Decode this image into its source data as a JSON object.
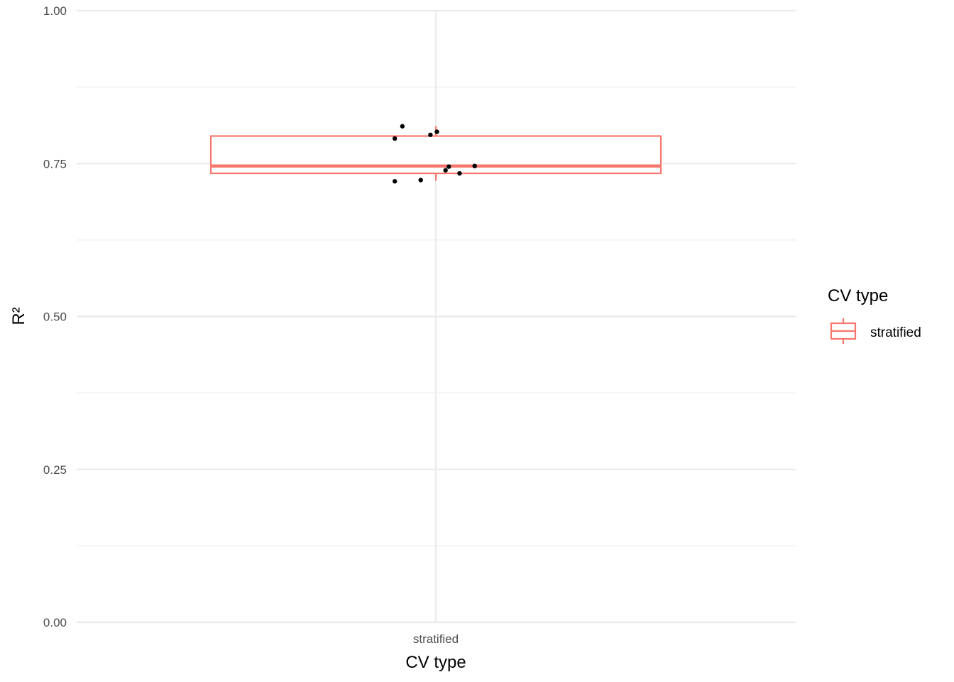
{
  "chart_data": {
    "type": "box",
    "categories": [
      "stratified"
    ],
    "xlabel": "CV type",
    "ylabel": "R²",
    "ylim": [
      0,
      1
    ],
    "y_ticks": [
      "0.00",
      "0.25",
      "0.50",
      "0.75",
      "1.00"
    ],
    "grid": true,
    "legend_placement": "right",
    "legend": {
      "title": "CV type",
      "entries": [
        "stratified"
      ]
    },
    "box": {
      "category": "stratified",
      "lower_whisker": 0.722,
      "q1": 0.734,
      "median": 0.746,
      "q3": 0.795,
      "upper_whisker": 0.811,
      "color": "#F8766D"
    },
    "points": [
      {
        "x_offset": -0.19,
        "y": 0.721
      },
      {
        "x_offset": -0.19,
        "y": 0.791
      },
      {
        "x_offset": -0.155,
        "y": 0.811
      },
      {
        "x_offset": -0.07,
        "y": 0.723
      },
      {
        "x_offset": -0.025,
        "y": 0.797
      },
      {
        "x_offset": 0.005,
        "y": 0.802
      },
      {
        "x_offset": 0.045,
        "y": 0.739
      },
      {
        "x_offset": 0.06,
        "y": 0.745
      },
      {
        "x_offset": 0.11,
        "y": 0.734
      },
      {
        "x_offset": 0.18,
        "y": 0.746
      }
    ],
    "point_color": "#000000"
  }
}
